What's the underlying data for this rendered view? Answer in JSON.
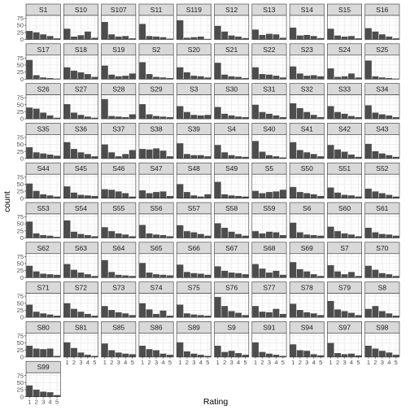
{
  "chart_data": {
    "type": "bar",
    "layout": "facet_wrap",
    "xlabel": "Rating",
    "ylabel": "count",
    "x_ticks": [
      "1",
      "2",
      "3",
      "4",
      "5"
    ],
    "y_ticks": [
      "0",
      "25",
      "50",
      "75"
    ],
    "ylim": [
      0,
      85
    ],
    "grid": true,
    "colors": {
      "bar": "#4d4d4d",
      "strip": "#d9d9d9",
      "panel_border": "#333333",
      "grid": "#ebebeb"
    },
    "facets": [
      {
        "label": "S1",
        "values": [
          30,
          25,
          18,
          12,
          4
        ]
      },
      {
        "label": "S10",
        "values": [
          38,
          10,
          15,
          28,
          6
        ]
      },
      {
        "label": "S107",
        "values": [
          62,
          18,
          10,
          12,
          4
        ]
      },
      {
        "label": "S11",
        "values": [
          55,
          12,
          10,
          8,
          3
        ]
      },
      {
        "label": "S119",
        "values": [
          68,
          6,
          8,
          10,
          2
        ]
      },
      {
        "label": "S12",
        "values": [
          48,
          28,
          14,
          10,
          5
        ]
      },
      {
        "label": "S13",
        "values": [
          35,
          16,
          20,
          18,
          6
        ]
      },
      {
        "label": "S14",
        "values": [
          42,
          14,
          16,
          12,
          5
        ]
      },
      {
        "label": "S15",
        "values": [
          38,
          14,
          10,
          12,
          4
        ]
      },
      {
        "label": "S16",
        "values": [
          40,
          28,
          18,
          10,
          4
        ]
      },
      {
        "label": "S17",
        "values": [
          68,
          14,
          6,
          4,
          2
        ]
      },
      {
        "label": "S18",
        "values": [
          42,
          30,
          24,
          18,
          8
        ]
      },
      {
        "label": "S19",
        "values": [
          48,
          16,
          10,
          12,
          20
        ]
      },
      {
        "label": "S2",
        "values": [
          60,
          18,
          8,
          6,
          4
        ]
      },
      {
        "label": "S20",
        "values": [
          42,
          24,
          12,
          10,
          6
        ]
      },
      {
        "label": "S21",
        "values": [
          58,
          16,
          10,
          8,
          4
        ]
      },
      {
        "label": "S22",
        "values": [
          42,
          18,
          16,
          12,
          6
        ]
      },
      {
        "label": "S23",
        "values": [
          45,
          20,
          12,
          14,
          10
        ]
      },
      {
        "label": "S24",
        "values": [
          38,
          8,
          10,
          20,
          6
        ]
      },
      {
        "label": "S25",
        "values": [
          66,
          10,
          6,
          4,
          2
        ]
      },
      {
        "label": "S26",
        "values": [
          40,
          36,
          22,
          12,
          4
        ]
      },
      {
        "label": "S27",
        "values": [
          52,
          22,
          14,
          8,
          4
        ]
      },
      {
        "label": "S28",
        "values": [
          70,
          10,
          8,
          6,
          16
        ]
      },
      {
        "label": "S29",
        "values": [
          52,
          16,
          10,
          8,
          6
        ]
      },
      {
        "label": "S3",
        "values": [
          45,
          24,
          14,
          12,
          14
        ]
      },
      {
        "label": "S30",
        "values": [
          42,
          18,
          12,
          8,
          6
        ]
      },
      {
        "label": "S31",
        "values": [
          50,
          24,
          18,
          12,
          6
        ]
      },
      {
        "label": "S32",
        "values": [
          55,
          38,
          24,
          14,
          6
        ]
      },
      {
        "label": "S33",
        "values": [
          45,
          24,
          18,
          10,
          6
        ]
      },
      {
        "label": "S34",
        "values": [
          48,
          22,
          16,
          12,
          6
        ]
      },
      {
        "label": "S35",
        "values": [
          40,
          22,
          18,
          14,
          10
        ]
      },
      {
        "label": "S36",
        "values": [
          58,
          34,
          22,
          16,
          8
        ]
      },
      {
        "label": "S37",
        "values": [
          50,
          22,
          8,
          16,
          30
        ]
      },
      {
        "label": "S38",
        "values": [
          34,
          32,
          36,
          28,
          8
        ]
      },
      {
        "label": "S39",
        "values": [
          54,
          16,
          12,
          12,
          8
        ]
      },
      {
        "label": "S4",
        "values": [
          48,
          22,
          12,
          8,
          6
        ]
      },
      {
        "label": "S40",
        "values": [
          62,
          24,
          12,
          8,
          4
        ]
      },
      {
        "label": "S41",
        "values": [
          58,
          30,
          22,
          16,
          8
        ]
      },
      {
        "label": "S42",
        "values": [
          48,
          32,
          24,
          14,
          6
        ]
      },
      {
        "label": "S43",
        "values": [
          52,
          26,
          18,
          12,
          6
        ]
      },
      {
        "label": "S44",
        "values": [
          52,
          26,
          14,
          10,
          6
        ]
      },
      {
        "label": "S45",
        "values": [
          42,
          20,
          12,
          10,
          8
        ]
      },
      {
        "label": "S46",
        "values": [
          32,
          30,
          24,
          18,
          6
        ]
      },
      {
        "label": "S47",
        "values": [
          28,
          18,
          22,
          24,
          8
        ]
      },
      {
        "label": "S48",
        "values": [
          50,
          22,
          10,
          6,
          14
        ]
      },
      {
        "label": "S49",
        "values": [
          58,
          14,
          10,
          8,
          6
        ]
      },
      {
        "label": "S5",
        "values": [
          26,
          18,
          22,
          24,
          30
        ]
      },
      {
        "label": "S50",
        "values": [
          40,
          22,
          18,
          14,
          8
        ]
      },
      {
        "label": "S51",
        "values": [
          38,
          20,
          12,
          10,
          6
        ]
      },
      {
        "label": "S52",
        "values": [
          34,
          24,
          18,
          12,
          6
        ]
      },
      {
        "label": "S53",
        "values": [
          58,
          16,
          10,
          8,
          4
        ]
      },
      {
        "label": "S54",
        "values": [
          62,
          22,
          14,
          10,
          6
        ]
      },
      {
        "label": "S55",
        "values": [
          38,
          24,
          16,
          12,
          6
        ]
      },
      {
        "label": "S56",
        "values": [
          46,
          16,
          12,
          10,
          6
        ]
      },
      {
        "label": "S57",
        "values": [
          45,
          24,
          20,
          14,
          8
        ]
      },
      {
        "label": "S58",
        "values": [
          52,
          36,
          22,
          14,
          8
        ]
      },
      {
        "label": "S59",
        "values": [
          24,
          16,
          22,
          20,
          10
        ]
      },
      {
        "label": "S6",
        "values": [
          54,
          20,
          12,
          10,
          8
        ]
      },
      {
        "label": "S60",
        "values": [
          40,
          24,
          16,
          12,
          6
        ]
      },
      {
        "label": "S61",
        "values": [
          36,
          20,
          14,
          12,
          8
        ]
      },
      {
        "label": "S62",
        "values": [
          42,
          22,
          14,
          12,
          10
        ]
      },
      {
        "label": "S63",
        "values": [
          48,
          28,
          18,
          12,
          6
        ]
      },
      {
        "label": "S64",
        "values": [
          62,
          20,
          10,
          8,
          6
        ]
      },
      {
        "label": "S65",
        "values": [
          52,
          18,
          12,
          10,
          8
        ]
      },
      {
        "label": "S66",
        "values": [
          46,
          20,
          16,
          14,
          10
        ]
      },
      {
        "label": "S67",
        "values": [
          40,
          24,
          18,
          16,
          12
        ]
      },
      {
        "label": "S68",
        "values": [
          48,
          32,
          18,
          24,
          10
        ]
      },
      {
        "label": "S69",
        "values": [
          55,
          30,
          22,
          12,
          6
        ]
      },
      {
        "label": "S7",
        "values": [
          44,
          22,
          12,
          20,
          6
        ]
      },
      {
        "label": "S70",
        "values": [
          42,
          28,
          16,
          12,
          6
        ]
      },
      {
        "label": "S71",
        "values": [
          45,
          20,
          14,
          10,
          6
        ]
      },
      {
        "label": "S72",
        "values": [
          50,
          30,
          20,
          12,
          6
        ]
      },
      {
        "label": "S73",
        "values": [
          40,
          26,
          18,
          14,
          8
        ]
      },
      {
        "label": "S74",
        "values": [
          50,
          28,
          12,
          24,
          6
        ]
      },
      {
        "label": "S75",
        "values": [
          45,
          14,
          10,
          8,
          6
        ]
      },
      {
        "label": "S76",
        "values": [
          72,
          40,
          22,
          16,
          8
        ]
      },
      {
        "label": "S77",
        "values": [
          40,
          20,
          18,
          30,
          12
        ]
      },
      {
        "label": "S78",
        "values": [
          48,
          26,
          18,
          14,
          8
        ]
      },
      {
        "label": "S79",
        "values": [
          58,
          28,
          22,
          16,
          8
        ]
      },
      {
        "label": "S8",
        "values": [
          30,
          40,
          22,
          14,
          6
        ]
      },
      {
        "label": "S80",
        "values": [
          40,
          30,
          28,
          30,
          4
        ]
      },
      {
        "label": "S81",
        "values": [
          52,
          32,
          16,
          8,
          4
        ]
      },
      {
        "label": "S85",
        "values": [
          48,
          24,
          16,
          12,
          10
        ]
      },
      {
        "label": "S86",
        "values": [
          40,
          28,
          24,
          12,
          8
        ]
      },
      {
        "label": "S89",
        "values": [
          52,
          20,
          12,
          8,
          4
        ]
      },
      {
        "label": "S9",
        "values": [
          40,
          18,
          22,
          14,
          8
        ]
      },
      {
        "label": "S91",
        "values": [
          52,
          18,
          12,
          8,
          4
        ]
      },
      {
        "label": "S94",
        "values": [
          45,
          24,
          22,
          10,
          6
        ]
      },
      {
        "label": "S97",
        "values": [
          50,
          14,
          10,
          12,
          6
        ]
      },
      {
        "label": "S98",
        "values": [
          40,
          30,
          22,
          16,
          8
        ]
      },
      {
        "label": "S99",
        "values": [
          40,
          25,
          18,
          16,
          6
        ]
      }
    ]
  }
}
